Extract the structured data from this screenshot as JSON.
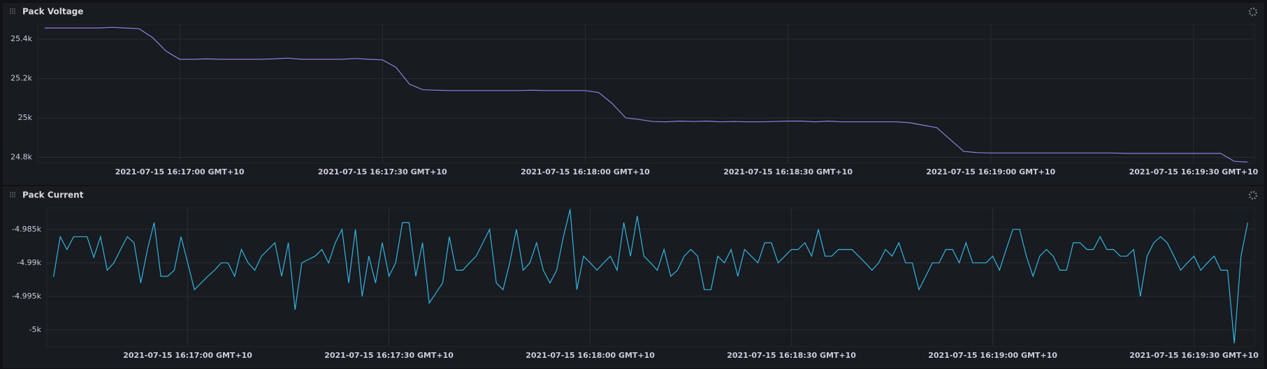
{
  "chart_data": [
    {
      "type": "line",
      "title": "Pack Voltage",
      "color": "#8f80e8",
      "grid": true,
      "xlim": [
        "2021-07-15 16:16:39",
        "2021-07-15 16:19:39"
      ],
      "ylim": [
        24770,
        25475
      ],
      "yticks": [
        {
          "value": 24800,
          "label": "24.8k"
        },
        {
          "value": 25000,
          "label": "25k"
        },
        {
          "value": 25200,
          "label": "25.2k"
        },
        {
          "value": 25400,
          "label": "25.4k"
        }
      ],
      "xticks": [
        {
          "value": "2021-07-15 16:17:00",
          "label": "2021-07-15 16:17:00 GMT+10"
        },
        {
          "value": "2021-07-15 16:17:30",
          "label": "2021-07-15 16:17:30 GMT+10"
        },
        {
          "value": "2021-07-15 16:18:00",
          "label": "2021-07-15 16:18:00 GMT+10"
        },
        {
          "value": "2021-07-15 16:18:30",
          "label": "2021-07-15 16:18:30 GMT+10"
        },
        {
          "value": "2021-07-15 16:19:00",
          "label": "2021-07-15 16:19:00 GMT+10"
        },
        {
          "value": "2021-07-15 16:19:30",
          "label": "2021-07-15 16:19:30 GMT+10"
        }
      ],
      "x": [
        "2021-07-15 16:16:40",
        "2021-07-15 16:16:42",
        "2021-07-15 16:16:44",
        "2021-07-15 16:16:46",
        "2021-07-15 16:16:48",
        "2021-07-15 16:16:50",
        "2021-07-15 16:16:52",
        "2021-07-15 16:16:54",
        "2021-07-15 16:16:56",
        "2021-07-15 16:16:58",
        "2021-07-15 16:17:00",
        "2021-07-15 16:17:02",
        "2021-07-15 16:17:04",
        "2021-07-15 16:17:06",
        "2021-07-15 16:17:08",
        "2021-07-15 16:17:10",
        "2021-07-15 16:17:12",
        "2021-07-15 16:17:14",
        "2021-07-15 16:17:16",
        "2021-07-15 16:17:18",
        "2021-07-15 16:17:20",
        "2021-07-15 16:17:22",
        "2021-07-15 16:17:24",
        "2021-07-15 16:17:26",
        "2021-07-15 16:17:28",
        "2021-07-15 16:17:30",
        "2021-07-15 16:17:32",
        "2021-07-15 16:17:34",
        "2021-07-15 16:17:36",
        "2021-07-15 16:17:38",
        "2021-07-15 16:17:40",
        "2021-07-15 16:17:42",
        "2021-07-15 16:17:44",
        "2021-07-15 16:17:46",
        "2021-07-15 16:17:48",
        "2021-07-15 16:17:50",
        "2021-07-15 16:17:52",
        "2021-07-15 16:17:54",
        "2021-07-15 16:17:56",
        "2021-07-15 16:17:58",
        "2021-07-15 16:18:00",
        "2021-07-15 16:18:02",
        "2021-07-15 16:18:04",
        "2021-07-15 16:18:06",
        "2021-07-15 16:18:08",
        "2021-07-15 16:18:10",
        "2021-07-15 16:18:12",
        "2021-07-15 16:18:14",
        "2021-07-15 16:18:16",
        "2021-07-15 16:18:18",
        "2021-07-15 16:18:20",
        "2021-07-15 16:18:22",
        "2021-07-15 16:18:24",
        "2021-07-15 16:18:26",
        "2021-07-15 16:18:28",
        "2021-07-15 16:18:30",
        "2021-07-15 16:18:32",
        "2021-07-15 16:18:34",
        "2021-07-15 16:18:36",
        "2021-07-15 16:18:38",
        "2021-07-15 16:18:40",
        "2021-07-15 16:18:42",
        "2021-07-15 16:18:44",
        "2021-07-15 16:18:46",
        "2021-07-15 16:18:48",
        "2021-07-15 16:18:50",
        "2021-07-15 16:18:52",
        "2021-07-15 16:18:54",
        "2021-07-15 16:18:56",
        "2021-07-15 16:18:58",
        "2021-07-15 16:19:00",
        "2021-07-15 16:19:02",
        "2021-07-15 16:19:04",
        "2021-07-15 16:19:06",
        "2021-07-15 16:19:08",
        "2021-07-15 16:19:10",
        "2021-07-15 16:19:12",
        "2021-07-15 16:19:14",
        "2021-07-15 16:19:16",
        "2021-07-15 16:19:18",
        "2021-07-15 16:19:20",
        "2021-07-15 16:19:22",
        "2021-07-15 16:19:24",
        "2021-07-15 16:19:26",
        "2021-07-15 16:19:28",
        "2021-07-15 16:19:30",
        "2021-07-15 16:19:32",
        "2021-07-15 16:19:34",
        "2021-07-15 16:19:36",
        "2021-07-15 16:19:38"
      ],
      "values": [
        25457,
        25457,
        25457,
        25457,
        25457,
        25460,
        25457,
        25453,
        25408,
        25339,
        25298,
        25298,
        25300,
        25298,
        25298,
        25298,
        25298,
        25300,
        25304,
        25298,
        25298,
        25298,
        25298,
        25302,
        25298,
        25295,
        25257,
        25171,
        25143,
        25141,
        25139,
        25139,
        25139,
        25139,
        25139,
        25139,
        25141,
        25139,
        25139,
        25139,
        25139,
        25129,
        25073,
        25000,
        24992,
        24982,
        24980,
        24984,
        24982,
        24984,
        24980,
        24982,
        24980,
        24980,
        24982,
        24984,
        24984,
        24980,
        24984,
        24980,
        24980,
        24980,
        24980,
        24980,
        24976,
        24963,
        24951,
        24890,
        24830,
        24824,
        24822,
        24822,
        24822,
        24822,
        24822,
        24822,
        24822,
        24822,
        24822,
        24822,
        24820,
        24820,
        24820,
        24820,
        24820,
        24820,
        24820,
        24820,
        24780,
        24776
      ]
    },
    {
      "type": "line",
      "title": "Pack Current",
      "color": "#33b5e5",
      "grid": true,
      "xlim": [
        "2021-07-15 16:16:39",
        "2021-07-15 16:19:39"
      ],
      "ylim": [
        -5002.5,
        -4981.8
      ],
      "yticks": [
        {
          "value": -5000,
          "label": "-5k"
        },
        {
          "value": -4995,
          "label": "-4.995k"
        },
        {
          "value": -4990,
          "label": "-4.99k"
        },
        {
          "value": -4985,
          "label": "-4.985k"
        }
      ],
      "xticks": [
        {
          "value": "2021-07-15 16:17:00",
          "label": "2021-07-15 16:17:00 GMT+10"
        },
        {
          "value": "2021-07-15 16:17:30",
          "label": "2021-07-15 16:17:30 GMT+10"
        },
        {
          "value": "2021-07-15 16:18:00",
          "label": "2021-07-15 16:18:00 GMT+10"
        },
        {
          "value": "2021-07-15 16:18:30",
          "label": "2021-07-15 16:18:30 GMT+10"
        },
        {
          "value": "2021-07-15 16:19:00",
          "label": "2021-07-15 16:19:00 GMT+10"
        },
        {
          "value": "2021-07-15 16:19:30",
          "label": "2021-07-15 16:19:30 GMT+10"
        }
      ],
      "x": [
        "2021-07-15 16:16:40",
        "2021-07-15 16:16:41",
        "2021-07-15 16:16:42",
        "2021-07-15 16:16:43",
        "2021-07-15 16:16:44",
        "2021-07-15 16:16:45",
        "2021-07-15 16:16:46",
        "2021-07-15 16:16:47",
        "2021-07-15 16:16:48",
        "2021-07-15 16:16:49",
        "2021-07-15 16:16:50",
        "2021-07-15 16:16:51",
        "2021-07-15 16:16:52",
        "2021-07-15 16:16:53",
        "2021-07-15 16:16:54",
        "2021-07-15 16:16:55",
        "2021-07-15 16:16:56",
        "2021-07-15 16:16:57",
        "2021-07-15 16:16:58",
        "2021-07-15 16:16:59",
        "2021-07-15 16:17:00",
        "2021-07-15 16:17:01",
        "2021-07-15 16:17:02",
        "2021-07-15 16:17:03",
        "2021-07-15 16:17:04",
        "2021-07-15 16:17:05",
        "2021-07-15 16:17:06",
        "2021-07-15 16:17:07",
        "2021-07-15 16:17:08",
        "2021-07-15 16:17:09",
        "2021-07-15 16:17:10",
        "2021-07-15 16:17:11",
        "2021-07-15 16:17:12",
        "2021-07-15 16:17:13",
        "2021-07-15 16:17:14",
        "2021-07-15 16:17:15",
        "2021-07-15 16:17:16",
        "2021-07-15 16:17:17",
        "2021-07-15 16:17:18",
        "2021-07-15 16:17:19",
        "2021-07-15 16:17:20",
        "2021-07-15 16:17:21",
        "2021-07-15 16:17:22",
        "2021-07-15 16:17:23",
        "2021-07-15 16:17:24",
        "2021-07-15 16:17:25",
        "2021-07-15 16:17:26",
        "2021-07-15 16:17:27",
        "2021-07-15 16:17:28",
        "2021-07-15 16:17:29",
        "2021-07-15 16:17:30",
        "2021-07-15 16:17:31",
        "2021-07-15 16:17:32",
        "2021-07-15 16:17:33",
        "2021-07-15 16:17:34",
        "2021-07-15 16:17:35",
        "2021-07-15 16:17:36",
        "2021-07-15 16:17:37",
        "2021-07-15 16:17:38",
        "2021-07-15 16:17:39",
        "2021-07-15 16:17:40",
        "2021-07-15 16:17:41",
        "2021-07-15 16:17:42",
        "2021-07-15 16:17:43",
        "2021-07-15 16:17:44",
        "2021-07-15 16:17:45",
        "2021-07-15 16:17:46",
        "2021-07-15 16:17:47",
        "2021-07-15 16:17:48",
        "2021-07-15 16:17:49",
        "2021-07-15 16:17:50",
        "2021-07-15 16:17:51",
        "2021-07-15 16:17:52",
        "2021-07-15 16:17:53",
        "2021-07-15 16:17:54",
        "2021-07-15 16:17:55",
        "2021-07-15 16:17:56",
        "2021-07-15 16:17:57",
        "2021-07-15 16:17:58",
        "2021-07-15 16:17:59",
        "2021-07-15 16:18:00",
        "2021-07-15 16:18:01",
        "2021-07-15 16:18:02",
        "2021-07-15 16:18:03",
        "2021-07-15 16:18:04",
        "2021-07-15 16:18:05",
        "2021-07-15 16:18:06",
        "2021-07-15 16:18:07",
        "2021-07-15 16:18:08",
        "2021-07-15 16:18:09",
        "2021-07-15 16:18:10",
        "2021-07-15 16:18:11",
        "2021-07-15 16:18:12",
        "2021-07-15 16:18:13",
        "2021-07-15 16:18:14",
        "2021-07-15 16:18:15",
        "2021-07-15 16:18:16",
        "2021-07-15 16:18:17",
        "2021-07-15 16:18:18",
        "2021-07-15 16:18:19",
        "2021-07-15 16:18:20",
        "2021-07-15 16:18:21",
        "2021-07-15 16:18:22",
        "2021-07-15 16:18:23",
        "2021-07-15 16:18:24",
        "2021-07-15 16:18:25",
        "2021-07-15 16:18:26",
        "2021-07-15 16:18:27",
        "2021-07-15 16:18:28",
        "2021-07-15 16:18:29",
        "2021-07-15 16:18:30",
        "2021-07-15 16:18:31",
        "2021-07-15 16:18:32",
        "2021-07-15 16:18:33",
        "2021-07-15 16:18:34",
        "2021-07-15 16:18:35",
        "2021-07-15 16:18:36",
        "2021-07-15 16:18:37",
        "2021-07-15 16:18:38",
        "2021-07-15 16:18:39",
        "2021-07-15 16:18:40",
        "2021-07-15 16:18:41",
        "2021-07-15 16:18:42",
        "2021-07-15 16:18:43",
        "2021-07-15 16:18:44",
        "2021-07-15 16:18:45",
        "2021-07-15 16:18:46",
        "2021-07-15 16:18:47",
        "2021-07-15 16:18:48",
        "2021-07-15 16:18:49",
        "2021-07-15 16:18:50",
        "2021-07-15 16:18:51",
        "2021-07-15 16:18:52",
        "2021-07-15 16:18:53",
        "2021-07-15 16:18:54",
        "2021-07-15 16:18:55",
        "2021-07-15 16:18:56",
        "2021-07-15 16:18:57",
        "2021-07-15 16:18:58",
        "2021-07-15 16:18:59",
        "2021-07-15 16:19:00",
        "2021-07-15 16:19:01",
        "2021-07-15 16:19:02",
        "2021-07-15 16:19:03",
        "2021-07-15 16:19:04",
        "2021-07-15 16:19:05",
        "2021-07-15 16:19:06",
        "2021-07-15 16:19:07",
        "2021-07-15 16:19:08",
        "2021-07-15 16:19:09",
        "2021-07-15 16:19:10",
        "2021-07-15 16:19:11",
        "2021-07-15 16:19:12",
        "2021-07-15 16:19:13",
        "2021-07-15 16:19:14",
        "2021-07-15 16:19:15",
        "2021-07-15 16:19:16",
        "2021-07-15 16:19:17",
        "2021-07-15 16:19:18",
        "2021-07-15 16:19:19",
        "2021-07-15 16:19:20",
        "2021-07-15 16:19:21",
        "2021-07-15 16:19:22",
        "2021-07-15 16:19:23",
        "2021-07-15 16:19:24",
        "2021-07-15 16:19:25",
        "2021-07-15 16:19:26",
        "2021-07-15 16:19:27",
        "2021-07-15 16:19:28",
        "2021-07-15 16:19:29",
        "2021-07-15 16:19:30",
        "2021-07-15 16:19:31",
        "2021-07-15 16:19:32",
        "2021-07-15 16:19:33",
        "2021-07-15 16:19:34",
        "2021-07-15 16:19:35",
        "2021-07-15 16:19:36",
        "2021-07-15 16:19:37",
        "2021-07-15 16:19:38"
      ],
      "values": [
        -4992.1,
        -4986.1,
        -4988,
        -4986.1,
        -4986.1,
        -4986.1,
        -4989.2,
        -4986.1,
        -4991.1,
        -4990,
        -4988,
        -4986.1,
        -4987,
        -4993,
        -4988,
        -4984,
        -4992,
        -4992,
        -4991.1,
        -4986.1,
        -4990,
        -4994,
        -4993,
        -4992,
        -4991.1,
        -4990,
        -4990,
        -4992,
        -4988,
        -4990,
        -4991.1,
        -4989,
        -4988,
        -4987,
        -4992,
        -4987,
        -4997,
        -4990,
        -4989.5,
        -4989,
        -4988,
        -4990,
        -4987,
        -4985,
        -4993,
        -4985,
        -4995,
        -4989,
        -4993,
        -4987,
        -4992,
        -4990,
        -4984,
        -4984,
        -4992,
        -4987,
        -4996,
        -4994.5,
        -4993,
        -4986.1,
        -4991.1,
        -4991.1,
        -4990,
        -4989,
        -4987,
        -4985,
        -4993,
        -4994,
        -4990,
        -4985,
        -4991.1,
        -4990,
        -4987,
        -4991.1,
        -4993,
        -4991.1,
        -4986.1,
        -4982,
        -4994,
        -4989,
        -4990,
        -4991.1,
        -4990,
        -4989,
        -4991.1,
        -4984,
        -4989,
        -4983,
        -4989,
        -4990,
        -4991.1,
        -4988,
        -4992,
        -4991.1,
        -4989,
        -4988,
        -4989,
        -4994,
        -4994,
        -4989,
        -4990,
        -4988,
        -4992,
        -4988,
        -4989,
        -4990,
        -4987,
        -4987,
        -4990,
        -4989,
        -4988,
        -4988,
        -4987,
        -4989,
        -4985,
        -4989,
        -4989,
        -4988,
        -4988,
        -4988,
        -4989,
        -4990,
        -4991.1,
        -4990,
        -4988,
        -4989,
        -4987,
        -4990,
        -4990,
        -4994,
        -4992,
        -4990,
        -4990,
        -4988,
        -4988,
        -4990,
        -4987,
        -4990,
        -4990,
        -4990,
        -4989,
        -4991.1,
        -4988,
        -4985,
        -4985,
        -4989,
        -4992,
        -4989,
        -4988,
        -4989,
        -4991.1,
        -4991.1,
        -4987,
        -4987,
        -4988,
        -4988,
        -4986.1,
        -4988,
        -4988,
        -4989,
        -4989,
        -4988,
        -4995,
        -4989,
        -4987,
        -4986.1,
        -4987,
        -4989,
        -4991.1,
        -4990,
        -4989,
        -4991.1,
        -4990,
        -4989,
        -4991.1,
        -4991.1,
        -5002,
        -4989,
        -4984
      ]
    }
  ]
}
